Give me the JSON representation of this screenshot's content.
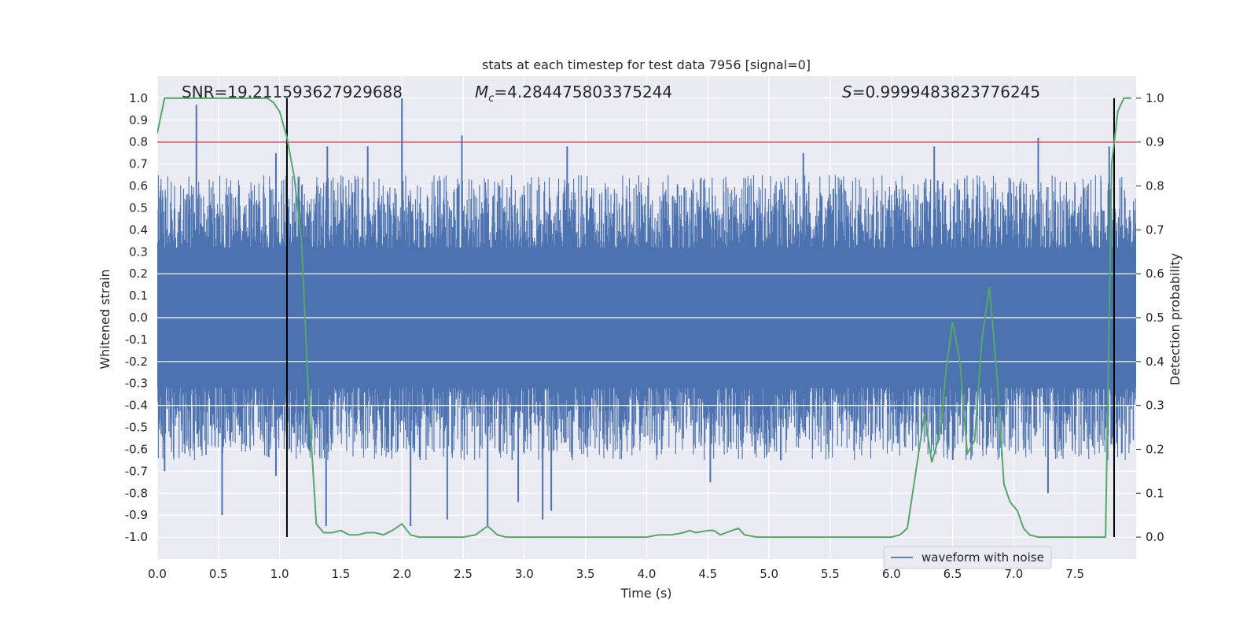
{
  "chart_data": {
    "type": "line",
    "title": "stats at each timestep for test data 7956 [signal=0]",
    "xlabel": "Time (s)",
    "ylabel_left": "Whitened strain",
    "ylabel_right": "Detection probability",
    "xlim": [
      0.0,
      8.0
    ],
    "ylim_left": [
      -1.1,
      1.1
    ],
    "ylim_right": [
      -0.05,
      1.05
    ],
    "x_ticks": [
      "0.0",
      "0.5",
      "1.0",
      "1.5",
      "2.0",
      "2.5",
      "3.0",
      "3.5",
      "4.0",
      "4.5",
      "5.0",
      "5.5",
      "6.0",
      "6.5",
      "7.0",
      "7.5"
    ],
    "y_ticks_left": [
      "1.0",
      "0.9",
      "0.8",
      "0.7",
      "0.6",
      "0.5",
      "0.4",
      "0.3",
      "0.2",
      "0.1",
      "0.0",
      "-0.1",
      "-0.2",
      "-0.3",
      "-0.4",
      "-0.5",
      "-0.6",
      "-0.7",
      "-0.8",
      "-0.9",
      "-1.0"
    ],
    "y_ticks_right": [
      "1.0",
      "0.9",
      "0.8",
      "0.7",
      "0.6",
      "0.5",
      "0.4",
      "0.3",
      "0.2",
      "0.1",
      "0.0"
    ],
    "annotations": {
      "snr": "SNR=19.211593627929688",
      "mc_symbol": "M",
      "mc_sub": "c",
      "mc_value": "=4.284475803375244",
      "s_symbol": "S",
      "s_value": "=0.9999483823776245"
    },
    "threshold_left": 0.8,
    "vertical_markers_x": [
      1.06,
      7.82
    ],
    "legend": {
      "label": "waveform with noise",
      "placement": "lower-right"
    },
    "series": [
      {
        "name": "waveform with noise",
        "color": "#4c72b0",
        "axis": "left",
        "spikes": [
          {
            "x": 0.32,
            "y": 0.97
          },
          {
            "x": 0.97,
            "y": 0.75
          },
          {
            "x": 1.39,
            "y": 0.78
          },
          {
            "x": 1.72,
            "y": 0.78
          },
          {
            "x": 2.0,
            "y": 1.0
          },
          {
            "x": 2.49,
            "y": 0.83
          },
          {
            "x": 3.35,
            "y": 0.78
          },
          {
            "x": 5.28,
            "y": 0.75
          },
          {
            "x": 6.35,
            "y": 0.78
          },
          {
            "x": 7.2,
            "y": 0.82
          },
          {
            "x": 7.78,
            "y": 0.78
          },
          {
            "x": 0.06,
            "y": -0.7
          },
          {
            "x": 0.53,
            "y": -0.9
          },
          {
            "x": 0.97,
            "y": -0.72
          },
          {
            "x": 1.38,
            "y": -0.95
          },
          {
            "x": 2.07,
            "y": -0.95
          },
          {
            "x": 2.37,
            "y": -0.92
          },
          {
            "x": 2.7,
            "y": -0.95
          },
          {
            "x": 2.95,
            "y": -0.84
          },
          {
            "x": 3.15,
            "y": -0.92
          },
          {
            "x": 3.22,
            "y": -0.88
          },
          {
            "x": 4.52,
            "y": -0.75
          },
          {
            "x": 7.28,
            "y": -0.8
          }
        ]
      },
      {
        "name": "detection probability",
        "color": "#55a868",
        "axis": "right",
        "x": [
          0.0,
          0.06,
          0.12,
          0.2,
          0.3,
          0.4,
          0.5,
          0.6,
          0.7,
          0.8,
          0.9,
          0.95,
          1.0,
          1.06,
          1.12,
          1.18,
          1.24,
          1.3,
          1.36,
          1.43,
          1.5,
          1.57,
          1.64,
          1.71,
          1.78,
          1.85,
          1.92,
          2.0,
          2.07,
          2.14,
          2.2,
          2.3,
          2.4,
          2.5,
          2.6,
          2.7,
          2.78,
          2.85,
          2.92,
          3.0,
          3.1,
          3.2,
          3.3,
          3.4,
          3.5,
          3.6,
          3.7,
          3.8,
          3.9,
          4.0,
          4.1,
          4.2,
          4.3,
          4.35,
          4.4,
          4.5,
          4.55,
          4.6,
          4.7,
          4.75,
          4.8,
          4.9,
          5.0,
          5.1,
          5.2,
          5.3,
          5.4,
          5.5,
          5.6,
          5.7,
          5.8,
          5.9,
          6.0,
          6.07,
          6.13,
          6.2,
          6.27,
          6.33,
          6.4,
          6.45,
          6.5,
          6.56,
          6.62,
          6.68,
          6.74,
          6.8,
          6.86,
          6.92,
          6.97,
          7.03,
          7.08,
          7.13,
          7.2,
          7.3,
          7.4,
          7.5,
          7.6,
          7.68,
          7.75,
          7.8,
          7.85,
          7.9,
          7.96
        ],
        "y": [
          0.92,
          1.0,
          1.0,
          1.0,
          1.0,
          1.0,
          1.0,
          1.0,
          1.0,
          1.0,
          1.0,
          0.99,
          0.97,
          0.91,
          0.82,
          0.67,
          0.3,
          0.03,
          0.01,
          0.01,
          0.015,
          0.005,
          0.005,
          0.01,
          0.01,
          0.005,
          0.015,
          0.03,
          0.005,
          0.0,
          0.0,
          0.0,
          0.0,
          0.0,
          0.005,
          0.025,
          0.005,
          0.0,
          0.0,
          0.0,
          0.0,
          0.0,
          0.0,
          0.0,
          0.0,
          0.0,
          0.0,
          0.0,
          0.0,
          0.0,
          0.005,
          0.005,
          0.01,
          0.015,
          0.01,
          0.015,
          0.015,
          0.005,
          0.015,
          0.02,
          0.005,
          0.0,
          0.0,
          0.0,
          0.0,
          0.0,
          0.0,
          0.0,
          0.0,
          0.0,
          0.0,
          0.0,
          0.0,
          0.005,
          0.02,
          0.15,
          0.28,
          0.17,
          0.24,
          0.39,
          0.49,
          0.4,
          0.19,
          0.22,
          0.45,
          0.57,
          0.38,
          0.12,
          0.08,
          0.06,
          0.02,
          0.005,
          0.0,
          0.0,
          0.0,
          0.0,
          0.0,
          0.0,
          0.0,
          0.85,
          0.97,
          1.0,
          1.0
        ]
      }
    ]
  }
}
